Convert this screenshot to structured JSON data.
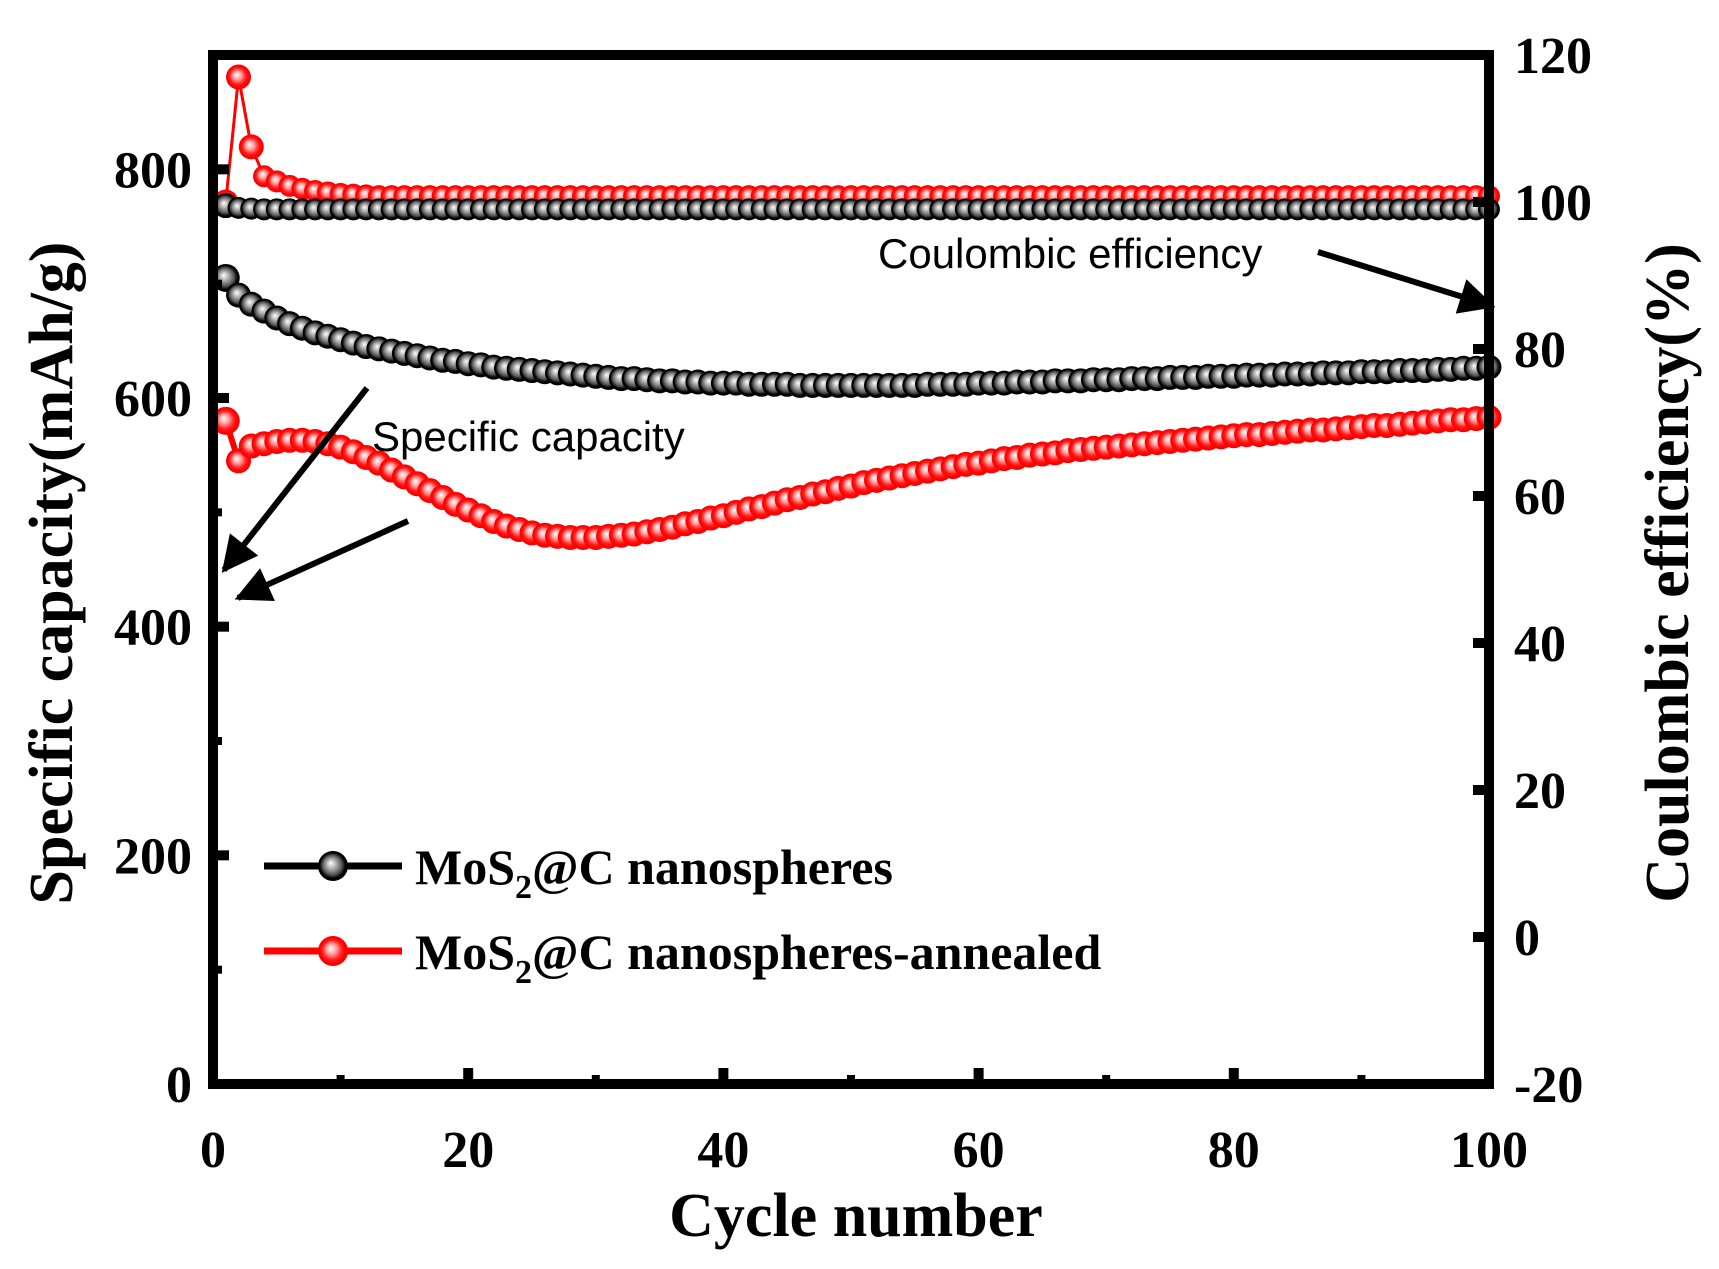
{
  "chart_data": {
    "type": "scatter",
    "xlabel": "Cycle number",
    "ylabel": "Specific capacity(mAh/g)",
    "y2label": "Coulombic efficiency(%)",
    "xlim": [
      0,
      100
    ],
    "ylim": [
      0,
      900
    ],
    "y2lim": [
      -20,
      120
    ],
    "x_ticks": [
      0,
      20,
      40,
      60,
      80,
      100
    ],
    "y_ticks": [
      0,
      200,
      400,
      600,
      800
    ],
    "y2_ticks": [
      -20,
      0,
      20,
      40,
      60,
      80,
      100,
      120
    ],
    "grid": false,
    "legend_position": "bottom-left",
    "colors": {
      "black": "#000000",
      "red": "#ff0000"
    },
    "annotations": [
      "Coulombic efficiency",
      "Specific capacity"
    ],
    "series": [
      {
        "name": "MoS2@C nanospheres",
        "legend_main": "MoS",
        "legend_sub": "2",
        "legend_rest": "@C nanospheres",
        "color": "#000000",
        "axis": "left",
        "quantity": "capacity",
        "values": [
          705,
          690,
          682,
          676,
          670,
          665,
          661,
          657,
          654,
          651,
          648,
          645,
          643,
          641,
          639,
          637,
          635,
          633,
          632,
          630,
          629,
          627,
          626,
          625,
          624,
          623,
          622,
          621,
          620,
          619,
          618,
          617,
          617,
          616,
          615,
          615,
          614,
          614,
          613,
          613,
          613,
          612,
          612,
          612,
          612,
          611,
          611,
          611,
          611,
          611,
          611,
          611,
          611,
          611,
          611,
          612,
          612,
          612,
          612,
          613,
          613,
          613,
          614,
          614,
          614,
          615,
          615,
          615,
          616,
          616,
          616,
          617,
          617,
          617,
          618,
          618,
          618,
          619,
          619,
          619,
          620,
          620,
          620,
          621,
          621,
          621,
          622,
          622,
          622,
          623,
          623,
          623,
          624,
          624,
          624,
          625,
          625,
          626,
          626,
          627
        ]
      },
      {
        "name": "MoS2@C nanospheres-annealed",
        "legend_main": "MoS",
        "legend_sub": "2",
        "legend_rest": "@C nanospheres-annealed",
        "color": "#ff0000",
        "axis": "left",
        "quantity": "capacity",
        "values": [
          580,
          545,
          558,
          560,
          562,
          563,
          563,
          562,
          560,
          557,
          553,
          548,
          543,
          537,
          531,
          525,
          519,
          513,
          507,
          502,
          497,
          492,
          488,
          485,
          482,
          480,
          479,
          478,
          478,
          478,
          479,
          480,
          481,
          483,
          485,
          487,
          490,
          492,
          495,
          497,
          500,
          503,
          505,
          508,
          511,
          513,
          516,
          518,
          521,
          523,
          526,
          528,
          530,
          532,
          534,
          536,
          538,
          540,
          542,
          543,
          545,
          547,
          548,
          550,
          551,
          552,
          554,
          555,
          556,
          557,
          558,
          559,
          560,
          561,
          562,
          563,
          564,
          565,
          566,
          567,
          568,
          568,
          569,
          570,
          571,
          572,
          572,
          573,
          574,
          575,
          576,
          576,
          577,
          578,
          579,
          580,
          581,
          581,
          582,
          583
        ]
      },
      {
        "name": "MoS2@C nanospheres CE",
        "color": "#000000",
        "axis": "right",
        "quantity": "coulombic_efficiency",
        "values": [
          99.5,
          99.2,
          99.1,
          99,
          99,
          99,
          99,
          99,
          99,
          99,
          99,
          99,
          99,
          99,
          99,
          99,
          99,
          99,
          99,
          99,
          99,
          99,
          99,
          99,
          99,
          99,
          99,
          99,
          99,
          99,
          99,
          99,
          99,
          99,
          99,
          99,
          99,
          99,
          99,
          99,
          99,
          99,
          99,
          99,
          99,
          99,
          99,
          99,
          99,
          99,
          99,
          99,
          99,
          99,
          99,
          99,
          99,
          99,
          99,
          99,
          99,
          99,
          99,
          99,
          99,
          99,
          99,
          99,
          99,
          99,
          99,
          99,
          99,
          99,
          99,
          99,
          99,
          99,
          99,
          99,
          99,
          99,
          99,
          99,
          99,
          99,
          99,
          99,
          99,
          99,
          99,
          99,
          99,
          99,
          99,
          99,
          99,
          99,
          99,
          99
        ]
      },
      {
        "name": "MoS2@C nanospheres-annealed CE",
        "color": "#ff0000",
        "axis": "right",
        "quantity": "coulombic_efficiency",
        "values": [
          100,
          117,
          107.5,
          103.5,
          102.8,
          102.2,
          101.8,
          101.5,
          101.3,
          101.1,
          101,
          100.9,
          100.8,
          100.8,
          100.8,
          100.8,
          100.8,
          100.8,
          100.8,
          100.8,
          100.8,
          100.8,
          100.8,
          100.8,
          100.8,
          100.8,
          100.8,
          100.8,
          100.8,
          100.8,
          100.8,
          100.8,
          100.8,
          100.8,
          100.8,
          100.8,
          100.8,
          100.8,
          100.8,
          100.8,
          100.8,
          100.8,
          100.8,
          100.8,
          100.8,
          100.8,
          100.8,
          100.8,
          100.8,
          100.8,
          100.8,
          100.8,
          100.8,
          100.8,
          100.8,
          100.8,
          100.8,
          100.8,
          100.8,
          100.8,
          100.8,
          100.8,
          100.8,
          100.8,
          100.8,
          100.8,
          100.8,
          100.8,
          100.8,
          100.8,
          100.8,
          100.8,
          100.8,
          100.8,
          100.8,
          100.8,
          100.8,
          100.8,
          100.8,
          100.8,
          100.8,
          100.8,
          100.8,
          100.8,
          100.8,
          100.8,
          100.8,
          100.8,
          100.8,
          100.8,
          100.8,
          100.8,
          100.8,
          100.8,
          100.8,
          100.8,
          100.8,
          100.8,
          100.8,
          100.8
        ]
      }
    ]
  }
}
